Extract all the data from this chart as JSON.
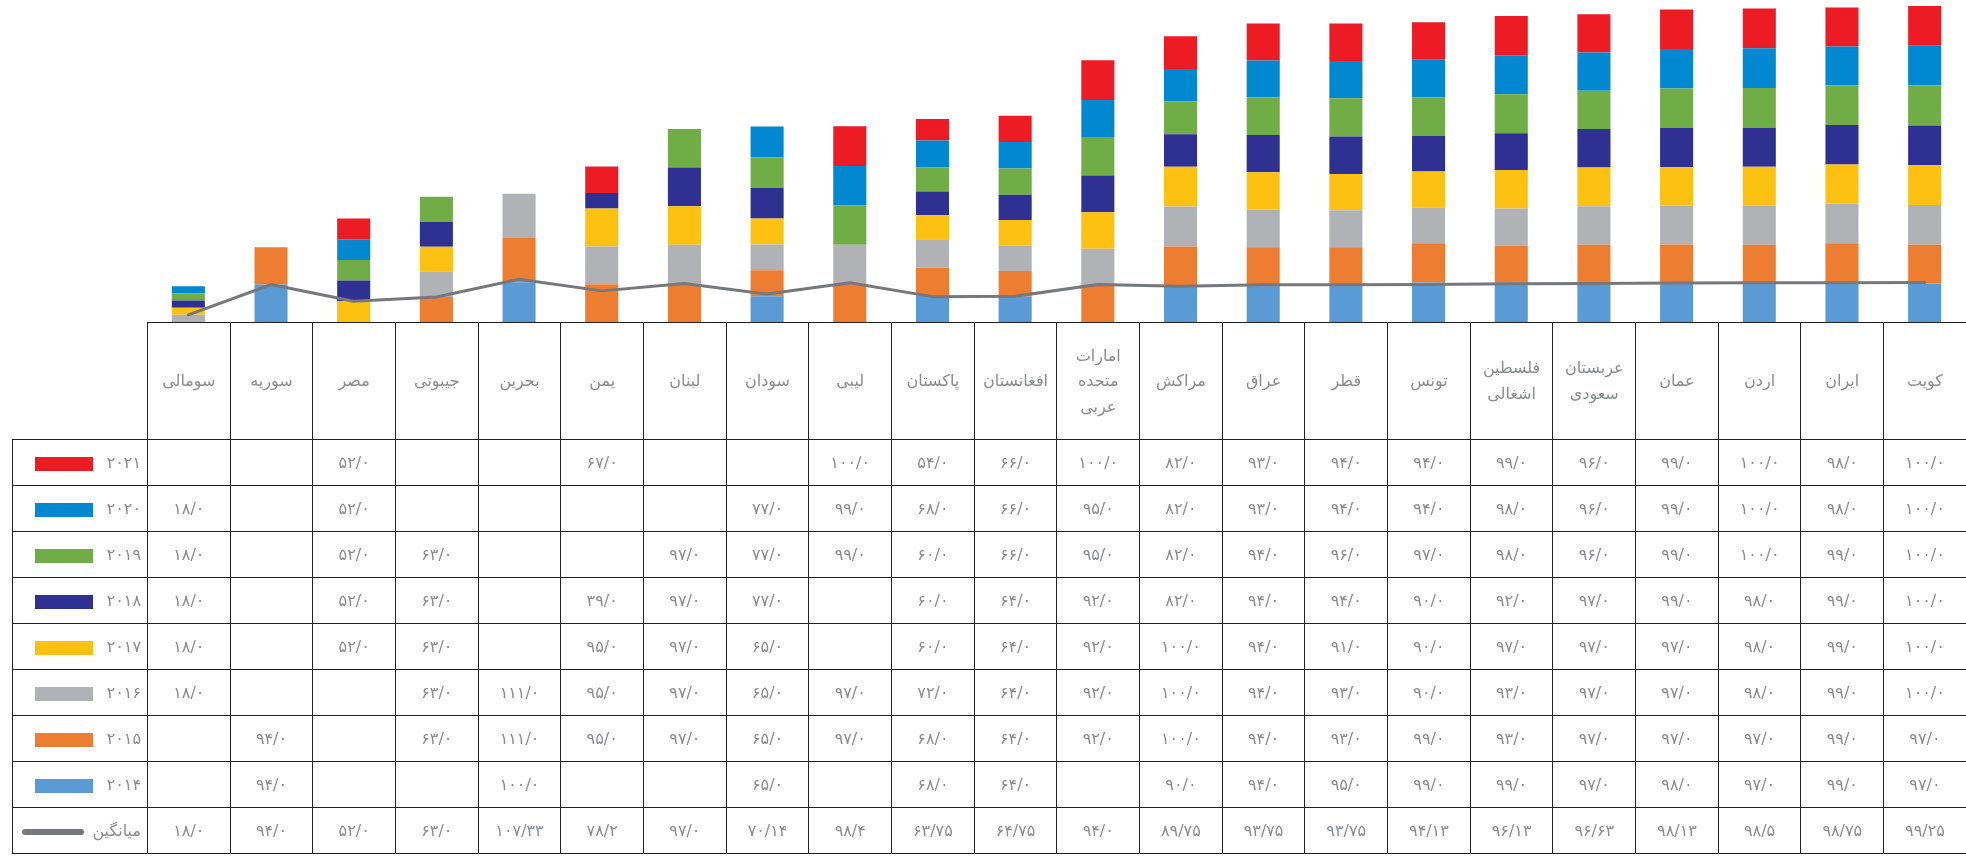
{
  "chart_data": {
    "type": "bar",
    "stacked": true,
    "legend": "bottom left",
    "categories": [
      "سومالی",
      "سوریه",
      "مصر",
      "جیبوتی",
      "بحرین",
      "یمن",
      "لبنان",
      "سودان",
      "لیبی",
      "پاکستان",
      "افغانستان",
      "امارات متحده عربی",
      "مراکش",
      "عراق",
      "قطر",
      "تونس",
      "فلسطین اشغالی",
      "عربستان سعودی",
      "عمان",
      "اردن",
      "ایران",
      "کویت"
    ],
    "series": [
      {
        "name": "۲۰۱۴",
        "color": "#5b9bd5",
        "values": [
          null,
          94,
          null,
          null,
          100,
          null,
          null,
          65,
          null,
          68,
          64,
          null,
          90,
          94,
          95,
          99,
          99,
          97,
          98,
          97,
          99,
          97
        ],
        "value_labels": [
          null,
          "۹۴/۰",
          null,
          null,
          "۱۰۰/۰",
          null,
          null,
          "۶۵/۰",
          null,
          "۶۸/۰",
          "۶۴/۰",
          null,
          "۹۰/۰",
          "۹۴/۰",
          "۹۵/۰",
          "۹۹/۰",
          "۹۹/۰",
          "۹۷/۰",
          "۹۸/۰",
          "۹۷/۰",
          "۹۹/۰",
          "۹۷/۰"
        ]
      },
      {
        "name": "۲۰۱۵",
        "color": "#ed7d31",
        "values": [
          null,
          94,
          null,
          63,
          111,
          95,
          97,
          65,
          97,
          68,
          64,
          92,
          100,
          94,
          93,
          99,
          93,
          97,
          97,
          97,
          99,
          97
        ],
        "value_labels": [
          null,
          "۹۴/۰",
          null,
          "۶۳/۰",
          "۱۱۱/۰",
          "۹۵/۰",
          "۹۷/۰",
          "۶۵/۰",
          "۹۷/۰",
          "۶۸/۰",
          "۶۴/۰",
          "۹۲/۰",
          "۱۰۰/۰",
          "۹۴/۰",
          "۹۳/۰",
          "۹۹/۰",
          "۹۳/۰",
          "۹۷/۰",
          "۹۷/۰",
          "۹۷/۰",
          "۹۹/۰",
          "۹۷/۰"
        ]
      },
      {
        "name": "۲۰۱۶",
        "color": "#b1b2b5",
        "values": [
          18,
          null,
          null,
          63,
          111,
          95,
          97,
          65,
          97,
          72,
          64,
          92,
          100,
          94,
          93,
          90,
          93,
          97,
          97,
          98,
          99,
          100
        ],
        "value_labels": [
          "۱۸/۰",
          null,
          null,
          "۶۳/۰",
          "۱۱۱/۰",
          "۹۵/۰",
          "۹۷/۰",
          "۶۵/۰",
          "۹۷/۰",
          "۷۲/۰",
          "۶۴/۰",
          "۹۲/۰",
          "۱۰۰/۰",
          "۹۴/۰",
          "۹۳/۰",
          "۹۰/۰",
          "۹۳/۰",
          "۹۷/۰",
          "۹۷/۰",
          "۹۸/۰",
          "۹۹/۰",
          "۱۰۰/۰"
        ]
      },
      {
        "name": "۲۰۱۷",
        "color": "#fcc111",
        "values": [
          18,
          null,
          52,
          63,
          null,
          95,
          97,
          65,
          null,
          60,
          64,
          92,
          100,
          94,
          91,
          90,
          97,
          97,
          97,
          98,
          99,
          100
        ],
        "value_labels": [
          "۱۸/۰",
          null,
          "۵۲/۰",
          "۶۳/۰",
          null,
          "۹۵/۰",
          "۹۷/۰",
          "۶۵/۰",
          null,
          "۶۰/۰",
          "۶۴/۰",
          "۹۲/۰",
          "۱۰۰/۰",
          "۹۴/۰",
          "۹۱/۰",
          "۹۰/۰",
          "۹۷/۰",
          "۹۷/۰",
          "۹۷/۰",
          "۹۸/۰",
          "۹۹/۰",
          "۱۰۰/۰"
        ]
      },
      {
        "name": "۲۰۱۸",
        "color": "#2e3192",
        "values": [
          18,
          null,
          52,
          63,
          null,
          39,
          97,
          77,
          null,
          60,
          64,
          92,
          82,
          94,
          94,
          90,
          92,
          97,
          99,
          98,
          99,
          100
        ],
        "value_labels": [
          "۱۸/۰",
          null,
          "۵۲/۰",
          "۶۳/۰",
          null,
          "۳۹/۰",
          "۹۷/۰",
          "۷۷/۰",
          null,
          "۶۰/۰",
          "۶۴/۰",
          "۹۲/۰",
          "۸۲/۰",
          "۹۴/۰",
          "۹۴/۰",
          "۹۰/۰",
          "۹۲/۰",
          "۹۷/۰",
          "۹۹/۰",
          "۹۸/۰",
          "۹۹/۰",
          "۱۰۰/۰"
        ]
      },
      {
        "name": "۲۰۱۹",
        "color": "#70ad47",
        "values": [
          18,
          null,
          52,
          63,
          null,
          null,
          97,
          77,
          99,
          60,
          66,
          95,
          82,
          94,
          96,
          97,
          98,
          96,
          99,
          100,
          99,
          100
        ],
        "value_labels": [
          "۱۸/۰",
          null,
          "۵۲/۰",
          "۶۳/۰",
          null,
          null,
          "۹۷/۰",
          "۷۷/۰",
          "۹۹/۰",
          "۶۰/۰",
          "۶۶/۰",
          "۹۵/۰",
          "۸۲/۰",
          "۹۴/۰",
          "۹۶/۰",
          "۹۷/۰",
          "۹۸/۰",
          "۹۶/۰",
          "۹۹/۰",
          "۱۰۰/۰",
          "۹۹/۰",
          "۱۰۰/۰"
        ]
      },
      {
        "name": "۲۰۲۰",
        "color": "#0088d1",
        "values": [
          18,
          null,
          52,
          null,
          null,
          null,
          null,
          77,
          99,
          68,
          66,
          95,
          82,
          93,
          94,
          94,
          98,
          96,
          99,
          100,
          98,
          100
        ],
        "value_labels": [
          "۱۸/۰",
          null,
          "۵۲/۰",
          null,
          null,
          null,
          null,
          "۷۷/۰",
          "۹۹/۰",
          "۶۸/۰",
          "۶۶/۰",
          "۹۵/۰",
          "۸۲/۰",
          "۹۳/۰",
          "۹۴/۰",
          "۹۴/۰",
          "۹۸/۰",
          "۹۶/۰",
          "۹۹/۰",
          "۱۰۰/۰",
          "۹۸/۰",
          "۱۰۰/۰"
        ]
      },
      {
        "name": "۲۰۲۱",
        "color": "#ed1c24",
        "values": [
          null,
          null,
          52,
          null,
          null,
          67,
          null,
          null,
          100,
          54,
          66,
          100,
          82,
          93,
          94,
          94,
          99,
          96,
          99,
          100,
          98,
          100
        ],
        "value_labels": [
          null,
          null,
          "۵۲/۰",
          null,
          null,
          "۶۷/۰",
          null,
          null,
          "۱۰۰/۰",
          "۵۴/۰",
          "۶۶/۰",
          "۱۰۰/۰",
          "۸۲/۰",
          "۹۳/۰",
          "۹۴/۰",
          "۹۴/۰",
          "۹۹/۰",
          "۹۶/۰",
          "۹۹/۰",
          "۱۰۰/۰",
          "۹۸/۰",
          "۱۰۰/۰"
        ]
      },
      {
        "name": "میانگین",
        "type": "line",
        "color": "#77787b",
        "values": [
          18,
          94,
          52,
          63,
          107.33,
          78.2,
          97,
          70.14,
          98.4,
          63.75,
          64.75,
          94,
          89.75,
          93.75,
          93.75,
          94.13,
          96.13,
          96.63,
          98.13,
          98.5,
          98.75,
          99.25
        ],
        "value_labels": [
          "۱۸/۰",
          "۹۴/۰",
          "۵۲/۰",
          "۶۳/۰",
          "۱۰۷/۳۳",
          "۷۸/۲",
          "۹۷/۰",
          "۷۰/۱۴",
          "۹۸/۴",
          "۶۳/۷۵",
          "۶۴/۷۵",
          "۹۴/۰",
          "۸۹/۷۵",
          "۹۳/۷۵",
          "۹۳/۷۵",
          "۹۴/۱۳",
          "۹۶/۱۳",
          "۹۶/۶۳",
          "۹۸/۱۳",
          "۹۸/۵",
          "۹۸/۷۵",
          "۹۹/۲۵"
        ]
      }
    ]
  }
}
